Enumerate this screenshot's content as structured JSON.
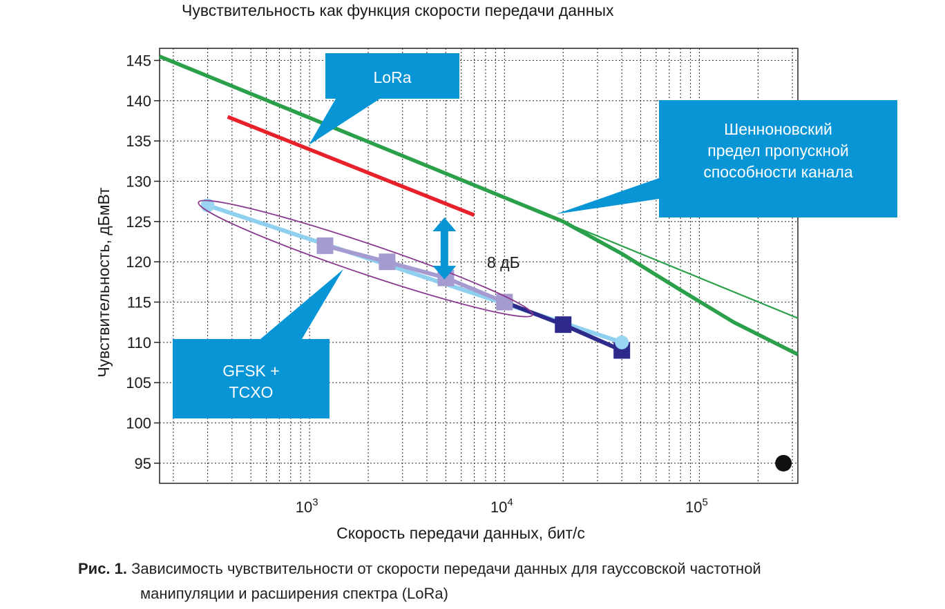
{
  "chart_data": {
    "type": "line",
    "title": "Чувствительность как функция скорости передачи данных",
    "xlabel": "Скорость передачи данных, бит/с",
    "ylabel": "Чувствительность, дБмВт",
    "x_scale": "log",
    "xlim": [
      170,
      320000
    ],
    "ylim": [
      92.5,
      146.5
    ],
    "grid": true,
    "x_ticks": [
      {
        "value": 1000,
        "base": "10",
        "exp": "3"
      },
      {
        "value": 10000,
        "base": "10",
        "exp": "4"
      },
      {
        "value": 100000,
        "base": "10",
        "exp": "5"
      }
    ],
    "y_ticks": [
      145,
      140,
      135,
      130,
      125,
      120,
      115,
      110,
      105,
      100,
      95
    ],
    "series": [
      {
        "name": "Шенноновский предел пропускной способности канала",
        "color": "#2aa04a",
        "points": [
          [
            170,
            145.5
          ],
          [
            20000,
            125
          ],
          [
            40000,
            121
          ],
          [
            80000,
            116.5
          ],
          [
            150000,
            112.5
          ],
          [
            320000,
            108.5
          ]
        ]
      },
      {
        "color": "#2aa04a",
        "points": [
          [
            170,
            145.5
          ],
          [
            320000,
            113
          ]
        ]
      },
      {
        "name": "LoRa",
        "color": "#e8202a",
        "points": [
          [
            380,
            138
          ],
          [
            7000,
            125.8
          ]
        ]
      },
      {
        "color": "#8fd0f0",
        "points": [
          [
            300,
            127
          ],
          [
            40000,
            110
          ]
        ]
      },
      {
        "name": "GFSK + TCXO",
        "color": "#2e2a8c",
        "points": [
          [
            1200,
            122
          ],
          [
            2500,
            120
          ],
          [
            5000,
            118
          ],
          [
            10000,
            115
          ],
          [
            20000,
            112.2
          ],
          [
            40000,
            109
          ]
        ]
      }
    ],
    "markers": [
      {
        "color": "#a59bd0",
        "shape": "square",
        "points": [
          [
            1200,
            122
          ],
          [
            2500,
            120
          ],
          [
            5000,
            118
          ],
          [
            10000,
            115
          ]
        ]
      },
      {
        "color": "#2e2a8c",
        "shape": "square",
        "points": [
          [
            20000,
            112.2
          ],
          [
            40000,
            109
          ]
        ]
      },
      {
        "color": "#9ad6f2",
        "shape": "circle",
        "points": [
          [
            300,
            127
          ],
          [
            40000,
            110
          ]
        ]
      },
      {
        "color": "#111111",
        "shape": "circle",
        "points": [
          [
            270000,
            95
          ]
        ]
      }
    ],
    "annotations": [
      {
        "text": "8 дБ",
        "type": "double-arrow",
        "x": 5000,
        "y_from": 125.5,
        "y_to": 117.8
      }
    ],
    "callouts": {
      "lora": [
        "LoRa"
      ],
      "shannon": [
        "Шенноновский",
        "предел пропускной",
        "способности канала"
      ],
      "gfsk": [
        "GFSK +",
        "TCXO"
      ]
    },
    "colors": {
      "callout": "#0895d6",
      "ellipse": "#8b3a8f",
      "grid": "#333333"
    }
  },
  "caption": {
    "label": "Рис. 1.",
    "line1": "Зависимость чувствительности от скорости передачи данных для гауссовской частотной",
    "line2": "манипуляции и расширения спектра (LoRa)"
  }
}
